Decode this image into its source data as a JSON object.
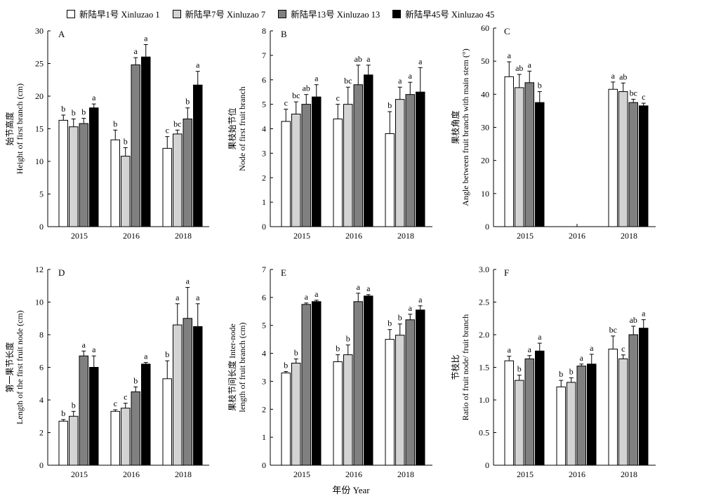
{
  "legend": [
    {
      "name": "新陆早1号 Xinluzao 1",
      "color": "#ffffff"
    },
    {
      "name": "新陆早7号 Xinluzao 7",
      "color": "#d3d3d3"
    },
    {
      "name": "新陆早13号 Xinluzao 13",
      "color": "#808080"
    },
    {
      "name": "新陆早45号 Xinluzao 45",
      "color": "#000000"
    }
  ],
  "x_title": "年份 Year",
  "chart_data": [
    {
      "panel": "A",
      "type": "bar",
      "ylabel_cn": "始节高度",
      "ylabel_en": "Height of first branch (cm)",
      "ylim": [
        0,
        30
      ],
      "yticks": [
        0,
        5,
        10,
        15,
        20,
        25,
        30
      ],
      "categories": [
        "2015",
        "2016",
        "2018"
      ],
      "series": [
        {
          "name": "新陆早1号 Xinluzao 1",
          "values": [
            16.3,
            13.3,
            12.0
          ],
          "errors": [
            0.8,
            1.5,
            1.8
          ],
          "letters": [
            "b",
            "b",
            "c"
          ]
        },
        {
          "name": "新陆早7号 Xinluzao 7",
          "values": [
            15.3,
            10.8,
            14.2
          ],
          "errors": [
            1.2,
            1.3,
            0.6
          ],
          "letters": [
            "b",
            "b",
            "bc"
          ]
        },
        {
          "name": "新陆早13号 Xinluzao 13",
          "values": [
            15.8,
            24.8,
            16.5
          ],
          "errors": [
            0.8,
            1.1,
            1.7
          ],
          "letters": [
            "b",
            "a",
            "b"
          ]
        },
        {
          "name": "新陆早45号 Xinluzao 45",
          "values": [
            18.2,
            26.0,
            21.7
          ],
          "errors": [
            0.6,
            1.9,
            2.1
          ],
          "letters": [
            "a",
            "a",
            "a"
          ]
        }
      ]
    },
    {
      "panel": "B",
      "type": "bar",
      "ylabel_cn": "果枝始节位",
      "ylabel_en": "Node of first fruit branch",
      "ylim": [
        0,
        8
      ],
      "yticks": [
        0,
        1,
        2,
        3,
        4,
        5,
        6,
        7,
        8
      ],
      "categories": [
        "2015",
        "2016",
        "2018"
      ],
      "series": [
        {
          "name": "新陆早1号 Xinluzao 1",
          "values": [
            4.3,
            4.4,
            3.8
          ],
          "errors": [
            0.5,
            0.6,
            0.9
          ],
          "letters": [
            "c",
            "c",
            "b"
          ]
        },
        {
          "name": "新陆早7号 Xinluzao 7",
          "values": [
            4.6,
            5.0,
            5.2
          ],
          "errors": [
            0.5,
            0.7,
            0.5
          ],
          "letters": [
            "bc",
            "bc",
            "a"
          ]
        },
        {
          "name": "新陆早13号 Xinluzao 13",
          "values": [
            5.0,
            5.8,
            5.4
          ],
          "errors": [
            0.4,
            0.8,
            0.5
          ],
          "letters": [
            "ab",
            "ab",
            "a"
          ]
        },
        {
          "name": "新陆早45号 Xinluzao 45",
          "values": [
            5.3,
            6.2,
            5.5
          ],
          "errors": [
            0.5,
            0.4,
            1.0
          ],
          "letters": [
            "a",
            "a",
            "a"
          ]
        }
      ]
    },
    {
      "panel": "C",
      "type": "bar",
      "ylabel_cn": "果枝角度",
      "ylabel_en": "Angle between fruit branch with main stem (°)",
      "ylim": [
        0,
        60
      ],
      "yticks": [
        0,
        10,
        20,
        30,
        40,
        50,
        60
      ],
      "categories": [
        "2015",
        "2016",
        "2018"
      ],
      "series": [
        {
          "name": "新陆早1号 Xinluzao 1",
          "values": [
            45.3,
            null,
            41.5
          ],
          "errors": [
            4.5,
            null,
            2.2
          ],
          "letters": [
            "a",
            "",
            "a"
          ]
        },
        {
          "name": "新陆早7号 Xinluzao 7",
          "values": [
            42.0,
            null,
            40.8
          ],
          "errors": [
            4.0,
            null,
            2.6
          ],
          "letters": [
            "ab",
            "",
            "ab"
          ]
        },
        {
          "name": "新陆早13号 Xinluzao 13",
          "values": [
            43.5,
            null,
            37.5
          ],
          "errors": [
            3.5,
            null,
            1.0
          ],
          "letters": [
            "a",
            "",
            "bc"
          ]
        },
        {
          "name": "新陆早45号 Xinluzao 45",
          "values": [
            37.5,
            null,
            36.5
          ],
          "errors": [
            3.3,
            null,
            0.8
          ],
          "letters": [
            "b",
            "",
            "c"
          ]
        }
      ]
    },
    {
      "panel": "D",
      "type": "bar",
      "ylabel_cn": "第一果节长度",
      "ylabel_en": "Length of the first fruit node (cm)",
      "ylim": [
        0,
        12
      ],
      "yticks": [
        0,
        2,
        4,
        6,
        8,
        10,
        12
      ],
      "categories": [
        "2015",
        "2016",
        "2018"
      ],
      "series": [
        {
          "name": "新陆早1号 Xinluzao 1",
          "values": [
            2.7,
            3.3,
            5.3
          ],
          "errors": [
            0.1,
            0.1,
            1.1
          ],
          "letters": [
            "b",
            "c",
            "b"
          ]
        },
        {
          "name": "新陆早7号 Xinluzao 7",
          "values": [
            3.0,
            3.5,
            8.6
          ],
          "errors": [
            0.3,
            0.3,
            1.3
          ],
          "letters": [
            "b",
            "c",
            "a"
          ]
        },
        {
          "name": "新陆早13号 Xinluzao 13",
          "values": [
            6.7,
            4.5,
            9.0
          ],
          "errors": [
            0.3,
            0.3,
            1.9
          ],
          "letters": [
            "a",
            "b",
            "a"
          ]
        },
        {
          "name": "新陆早45号 Xinluzao 45",
          "values": [
            6.0,
            6.2,
            8.5
          ],
          "errors": [
            0.7,
            0.1,
            1.4
          ],
          "letters": [
            "a",
            "a",
            "a"
          ]
        }
      ]
    },
    {
      "panel": "E",
      "type": "bar",
      "ylabel_cn": "果枝节间长度 Inter-node",
      "ylabel_en": "length of fruit branch (cm)",
      "ylim": [
        0,
        7
      ],
      "yticks": [
        0,
        1,
        2,
        3,
        4,
        5,
        6,
        7
      ],
      "categories": [
        "2015",
        "2016",
        "2018"
      ],
      "series": [
        {
          "name": "新陆早1号 Xinluzao 1",
          "values": [
            3.3,
            3.7,
            4.5
          ],
          "errors": [
            0.05,
            0.25,
            0.35
          ],
          "letters": [
            "b",
            "b",
            "b"
          ]
        },
        {
          "name": "新陆早7号 Xinluzao 7",
          "values": [
            3.65,
            3.95,
            4.65
          ],
          "errors": [
            0.15,
            0.35,
            0.4
          ],
          "letters": [
            "b",
            "b",
            "b"
          ]
        },
        {
          "name": "新陆早13号 Xinluzao 13",
          "values": [
            5.75,
            5.85,
            5.2
          ],
          "errors": [
            0.05,
            0.3,
            0.2
          ],
          "letters": [
            "a",
            "a",
            "a"
          ]
        },
        {
          "name": "新陆早45号 Xinluzao 45",
          "values": [
            5.85,
            6.05,
            5.55
          ],
          "errors": [
            0.05,
            0.05,
            0.15
          ],
          "letters": [
            "a",
            "a",
            "a"
          ]
        }
      ]
    },
    {
      "panel": "F",
      "type": "bar",
      "ylabel_cn": "节枝比",
      "ylabel_en": "Ratio of fruit node/ fruit branch",
      "ylim": [
        0,
        3.0
      ],
      "yticks": [
        "0",
        "0.5",
        "1.0",
        "1.5",
        "2.0",
        "2.5",
        "3.0"
      ],
      "categories": [
        "2015",
        "2016",
        "2018"
      ],
      "series": [
        {
          "name": "新陆早1号 Xinluzao 1",
          "values": [
            1.6,
            1.2,
            1.78
          ],
          "errors": [
            0.07,
            0.1,
            0.2
          ],
          "letters": [
            "a",
            "b",
            "bc"
          ]
        },
        {
          "name": "新陆早7号 Xinluzao 7",
          "values": [
            1.3,
            1.27,
            1.63
          ],
          "errors": [
            0.08,
            0.07,
            0.06
          ],
          "letters": [
            "b",
            "b",
            "c"
          ]
        },
        {
          "name": "新陆早13号 Xinluzao 13",
          "values": [
            1.63,
            1.52,
            2.0
          ],
          "errors": [
            0.05,
            0.03,
            0.13
          ],
          "letters": [
            "a",
            "a",
            "ab"
          ]
        },
        {
          "name": "新陆早45号 Xinluzao 45",
          "values": [
            1.75,
            1.55,
            2.1
          ],
          "errors": [
            0.12,
            0.15,
            0.13
          ],
          "letters": [
            "a",
            "a",
            "a"
          ]
        }
      ]
    }
  ]
}
